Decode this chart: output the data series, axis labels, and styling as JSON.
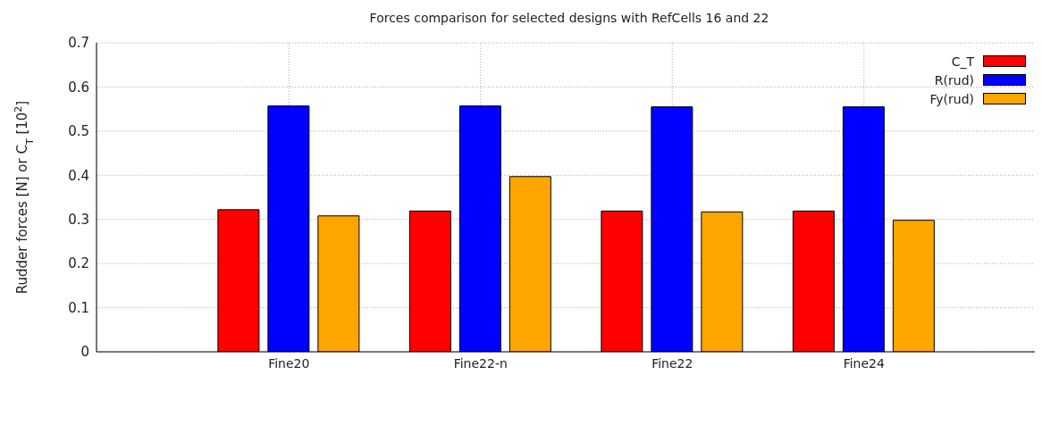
{
  "chart_data": {
    "type": "bar",
    "title": "Forces comparison for selected designs with RefCells 16 and 22",
    "ylabel": "Rudder forces [N] or C$_{T}$ [10$^{2}$]",
    "categories": [
      "Fine20",
      "Fine22-n",
      "Fine22",
      "Fine24"
    ],
    "series": [
      {
        "name": "C_T",
        "color": "#ff0000",
        "values": [
          0.322,
          0.319,
          0.319,
          0.319
        ]
      },
      {
        "name": "R(rud)",
        "color": "#0000ff",
        "values": [
          0.557,
          0.557,
          0.555,
          0.555
        ]
      },
      {
        "name": "Fy(rud)",
        "color": "#ffa500",
        "values": [
          0.308,
          0.397,
          0.317,
          0.298
        ]
      }
    ],
    "ylim": [
      0,
      0.7
    ],
    "yticks": [
      0,
      0.1,
      0.2,
      0.3,
      0.4,
      0.5,
      0.6,
      0.7
    ],
    "grid": true,
    "legend": "top right"
  }
}
